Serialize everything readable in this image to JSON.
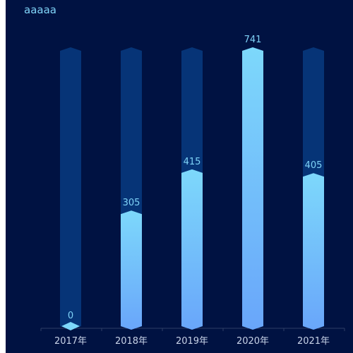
{
  "chart_data": {
    "type": "bar",
    "title": "aaaaa",
    "categories": [
      "2017年",
      "2018年",
      "2019年",
      "2020年",
      "2021年"
    ],
    "values": [
      0,
      305,
      415,
      741,
      405
    ],
    "background_max": 741,
    "data_labels": [
      "0",
      "305",
      "415",
      "741",
      "405"
    ],
    "ylim": [
      0,
      741
    ],
    "grid": false,
    "colors": {
      "panel_background": "#001242",
      "track": "#063477",
      "bar_top": "#7dd8fb",
      "bar_bottom": "#69a6fa",
      "label": "#7fd3f7",
      "tick_label": "#c8d3e8",
      "axis": "#2e3f66"
    }
  }
}
